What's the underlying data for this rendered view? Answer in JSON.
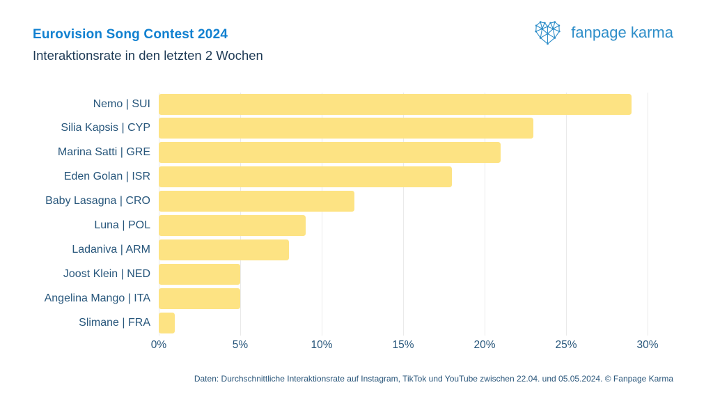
{
  "header": {
    "title": "Eurovision Song Contest 2024",
    "subtitle": "Interaktionsrate in den letzten 2 Wochen"
  },
  "logo": {
    "text": "fanpage karma",
    "icon": "network-heart-icon"
  },
  "footer": {
    "text": "Daten: Durchschnittliche Interaktionsrate auf Instagram, TikTok und YouTube zwischen 22.04. und 05.05.2024. © Fanpage Karma"
  },
  "colors": {
    "title_blue": "#1080D0",
    "logo_blue": "#2E8EC9",
    "text_navy": "#27567B",
    "bar_yellow": "#FDE383",
    "gridline_gray": "#EAEAEA"
  },
  "chart_data": {
    "type": "bar",
    "orientation": "horizontal",
    "title": "Eurovision Song Contest 2024",
    "subtitle": "Interaktionsrate in den letzten 2 Wochen",
    "categories": [
      "Nemo | SUI",
      "Silia Kapsis | CYP",
      "Marina Satti | GRE",
      "Eden Golan | ISR",
      "Baby Lasagna | CRO",
      "Luna | POL",
      "Ladaniva | ARM",
      "Joost Klein | NED",
      "Angelina Mango | ITA",
      "Slimane | FRA"
    ],
    "values": [
      29,
      23,
      21,
      18,
      12,
      9,
      8,
      5,
      5,
      1
    ],
    "unit": "%",
    "xlabel": "",
    "ylabel": "",
    "xlim": [
      0,
      30
    ],
    "xtick_values": [
      0,
      5,
      10,
      15,
      20,
      25,
      30
    ],
    "xtick_labels": [
      "0%",
      "5%",
      "10%",
      "15%",
      "20%",
      "25%",
      "30%"
    ],
    "grid": "vertical",
    "legend": "none",
    "bar_color": "#FDE383"
  }
}
